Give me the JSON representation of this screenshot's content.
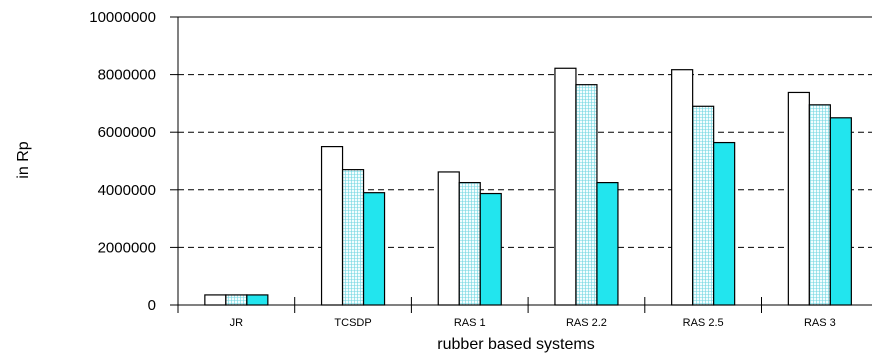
{
  "chart_data": {
    "type": "bar",
    "title": "",
    "xlabel": "rubber based systems",
    "ylabel": "in Rp",
    "categories": [
      "JR",
      "TCSDP",
      "RAS 1",
      "RAS 2.2",
      "RAS 2.5",
      "RAS 3"
    ],
    "series": [
      {
        "values": [
          350000,
          5500000,
          4620000,
          8220000,
          8170000,
          7380000
        ],
        "color": "#ffffff",
        "pattern": "none"
      },
      {
        "values": [
          350000,
          4700000,
          4250000,
          7650000,
          6900000,
          6950000
        ],
        "color": "#d8f8fb",
        "pattern": "grid"
      },
      {
        "values": [
          350000,
          3900000,
          3870000,
          4250000,
          5640000,
          6500000
        ],
        "color": "#22e5ee",
        "pattern": "none"
      }
    ],
    "ylim": [
      0,
      10000000
    ],
    "yticks": [
      "0",
      "2000000",
      "4000000",
      "6000000",
      "8000000",
      "10000000"
    ],
    "ytick_values": [
      0,
      2000000,
      4000000,
      6000000,
      8000000,
      10000000
    ],
    "grid": "dashed horizontal",
    "legend": "none"
  }
}
